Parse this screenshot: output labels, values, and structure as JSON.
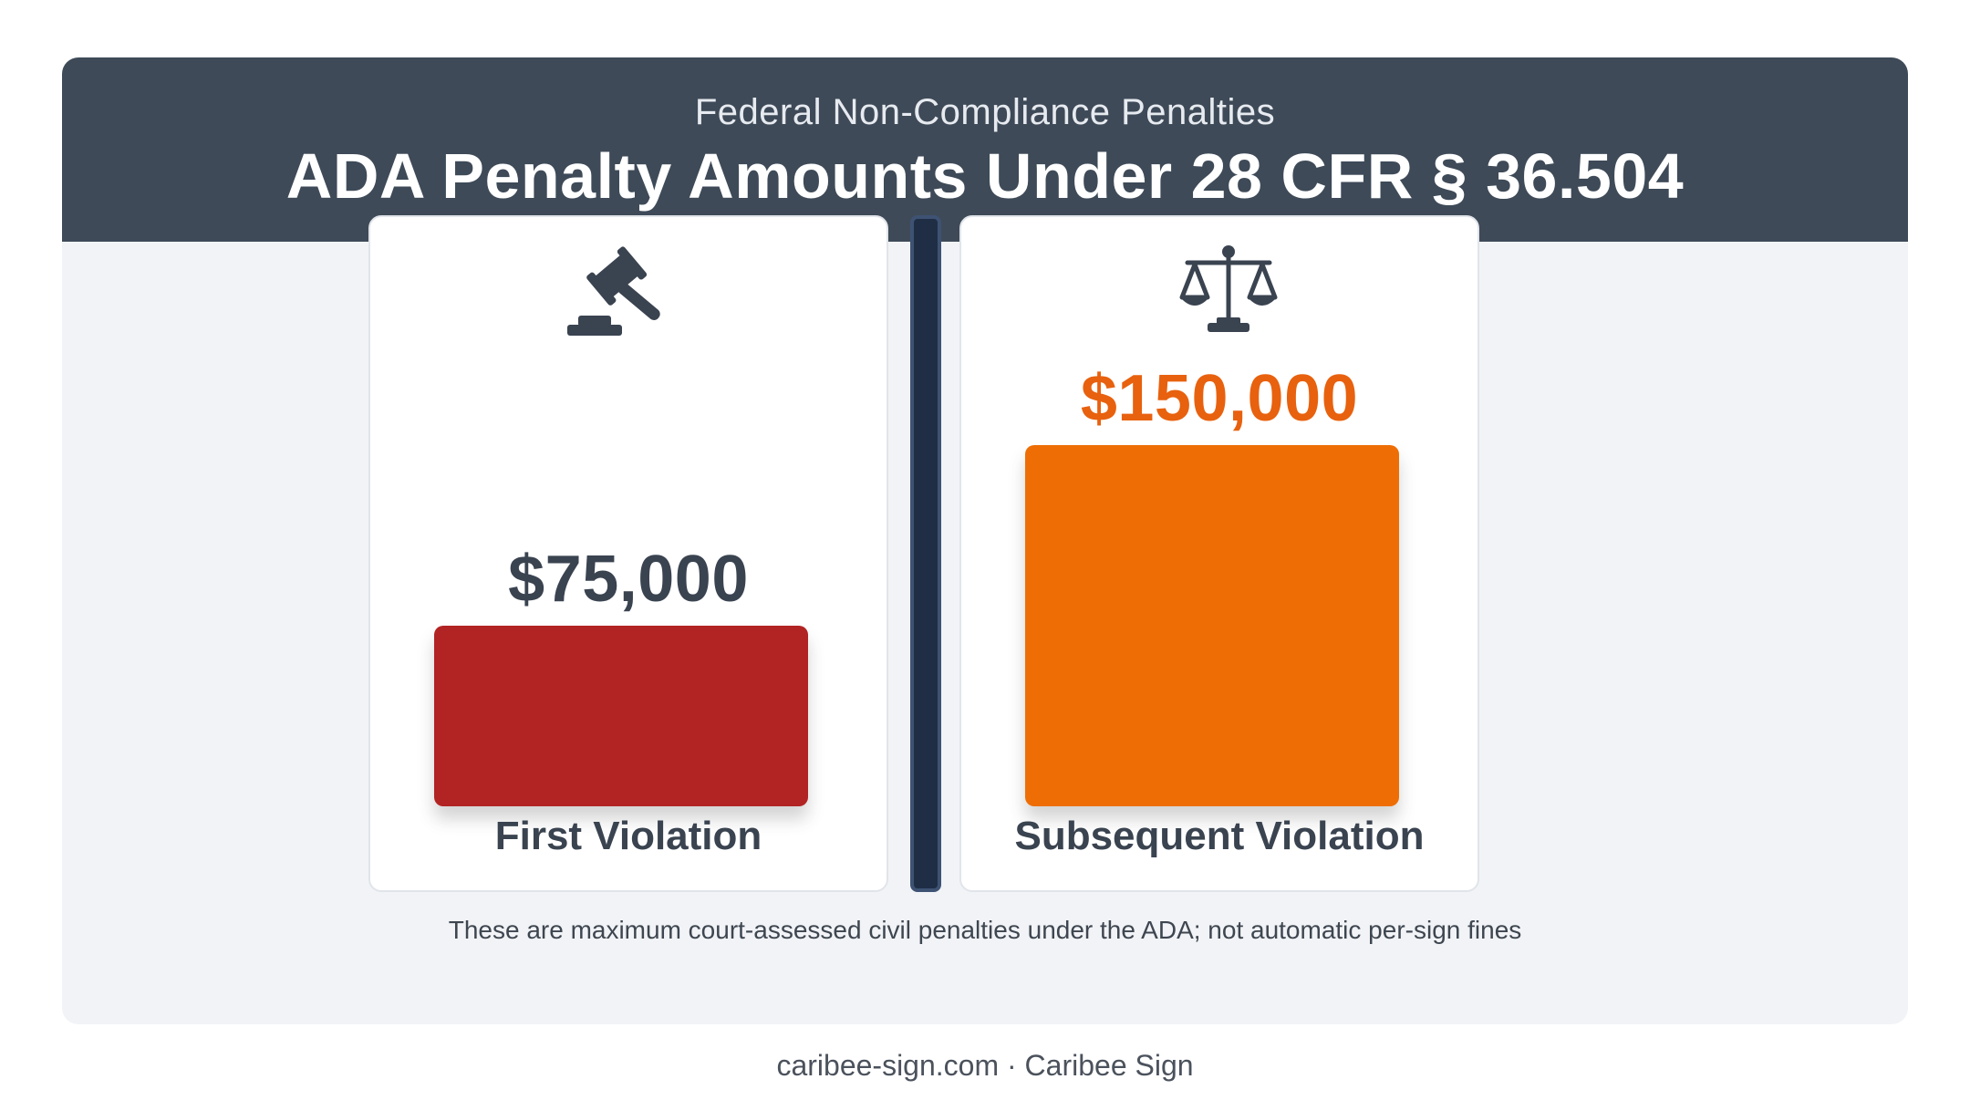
{
  "header": {
    "subtitle": "Federal Non-Compliance Penalties",
    "title": "ADA Penalty Amounts Under 28 CFR § 36.504"
  },
  "chart_data": {
    "type": "bar",
    "title": "ADA Penalty Amounts Under 28 CFR § 36.504",
    "subtitle": "Federal Non-Compliance Penalties",
    "categories": [
      "First Violation",
      "Subsequent Violation"
    ],
    "values": [
      75000,
      150000
    ],
    "value_labels": [
      "$75,000",
      "$150,000"
    ],
    "colors": [
      "#b22323",
      "#ee6e05"
    ],
    "ylim": [
      0,
      150000
    ],
    "grid": false,
    "icons": [
      "gavel-icon",
      "scales-icon"
    ]
  },
  "note": "These are maximum court-assessed civil penalties under the ADA; not automatic per-sign fines",
  "footer": "caribee-sign.com · Caribee Sign"
}
